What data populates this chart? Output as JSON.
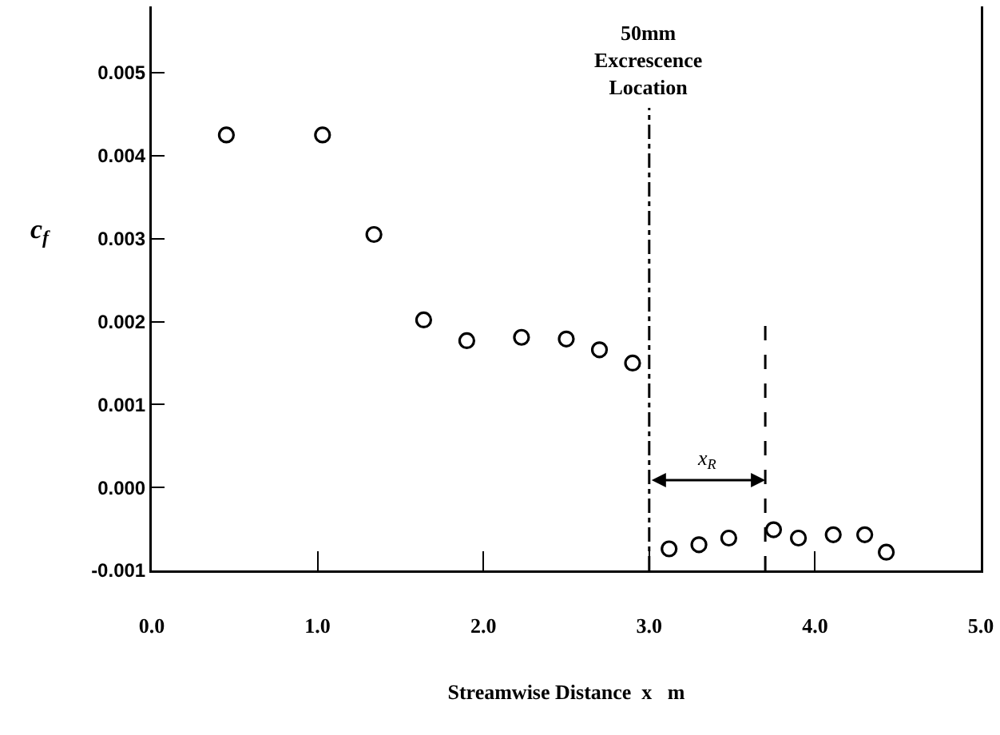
{
  "chart_data": {
    "type": "scatter",
    "xlabel": "Streamwise Distance  x   m",
    "ylabel": "c$_{f}$",
    "x": [
      0.45,
      1.03,
      1.34,
      1.64,
      1.9,
      2.23,
      2.5,
      2.7,
      2.9,
      3.12,
      3.3,
      3.48,
      3.75,
      3.9,
      4.11,
      4.3,
      4.43
    ],
    "series": [
      {
        "color": "#000000",
        "values": [
          0.00425,
          0.00425,
          0.00305,
          0.00202,
          0.00177,
          0.00181,
          0.00179,
          0.00166,
          0.0015,
          -0.00074,
          -0.00069,
          -0.00061,
          -0.00051,
          -0.00061,
          -0.00057,
          -0.00057,
          -0.00078
        ]
      }
    ],
    "xlim": [
      0,
      5
    ],
    "ylim": [
      -0.001,
      0.0058
    ],
    "xticks": [
      {
        "value": 0,
        "label": "0.0"
      },
      {
        "value": 1,
        "label": "1.0"
      },
      {
        "value": 2,
        "label": "2.0"
      },
      {
        "value": 3,
        "label": "3.0"
      },
      {
        "value": 4,
        "label": "4.0"
      },
      {
        "value": 5,
        "label": "5.0"
      }
    ],
    "yticks": [
      {
        "value": -0.001,
        "label": "-0.001"
      },
      {
        "value": 0,
        "label": "0.000"
      },
      {
        "value": 0.001,
        "label": "0.001"
      },
      {
        "value": 0.002,
        "label": "0.002"
      },
      {
        "value": 0.003,
        "label": "0.003"
      },
      {
        "value": 0.004,
        "label": "0.004"
      },
      {
        "value": 0.005,
        "label": "0.005"
      }
    ],
    "ref_lines": [
      {
        "axis": "x",
        "value": 3.0,
        "label": "50mm\nExcrescence\nLocation",
        "line_style": "dashdot"
      },
      {
        "axis": "x",
        "value": 3.7,
        "line_style": "dashed"
      }
    ],
    "annotations": [
      "x$_{R}$"
    ],
    "marker": "circle",
    "grid": false
  }
}
